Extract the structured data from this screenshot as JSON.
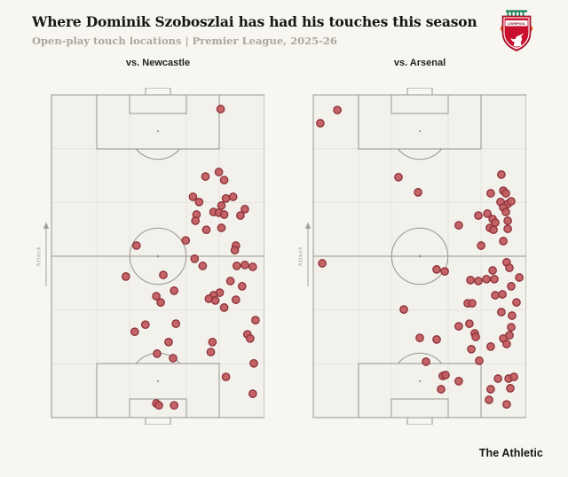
{
  "header": {
    "title": "Where Dominik Szoboszlai has had his touches this season",
    "subtitle": "Open-play touch locations | Premier League, 2025-26",
    "logo": "liverpool-crest"
  },
  "footer": {
    "brand": "The Athletic"
  },
  "colors": {
    "background": "#f8f6f1",
    "pitch_fill": "#f3f1ec",
    "pitch_line": "#96958f",
    "grid_line": "#e5e3dc",
    "spot": "#96958f",
    "touch_fill": "#c25c61",
    "touch_stroke": "#8c3137",
    "title": "#181716",
    "subtitle": "#aba79f",
    "attack_label": "#a3a29c",
    "crest_red": "#c8102e",
    "crest_green": "#0b7d52",
    "crest_flame": "#e8632c"
  },
  "chart_data": {
    "type": "scatter",
    "title": "Where Dominik Szoboszlai has had his touches this season",
    "subtitle": "Open-play touch locations | Premier League, 2025-26",
    "coords": "x: 0-100 left to right; y: 0 = attacking goal line, 100 = own goal line; vertical pitch, attack direction upward",
    "pitches": [
      {
        "label": "vs. Newcastle",
        "attack_label": "Attack",
        "touches": [
          [
            79.4,
            4.4
          ],
          [
            72.3,
            25.3
          ],
          [
            78.6,
            23.9
          ],
          [
            81.1,
            26.4
          ],
          [
            66.4,
            31.6
          ],
          [
            69.3,
            33.2
          ],
          [
            81.9,
            32.1
          ],
          [
            85.3,
            31.6
          ],
          [
            79.8,
            34.3
          ],
          [
            76.1,
            36.3
          ],
          [
            78.6,
            36.5
          ],
          [
            81.1,
            37.1
          ],
          [
            90.8,
            35.4
          ],
          [
            88.7,
            37.4
          ],
          [
            68.1,
            37.1
          ],
          [
            67.6,
            39.0
          ],
          [
            72.7,
            41.8
          ],
          [
            79.8,
            41.2
          ],
          [
            63.0,
            45.1
          ],
          [
            86.6,
            46.7
          ],
          [
            86.1,
            48.1
          ],
          [
            39.9,
            46.7
          ],
          [
            67.2,
            50.8
          ],
          [
            71.0,
            53.0
          ],
          [
            87.0,
            53.0
          ],
          [
            90.8,
            52.7
          ],
          [
            94.5,
            53.3
          ],
          [
            34.9,
            56.3
          ],
          [
            52.5,
            55.8
          ],
          [
            84.0,
            57.7
          ],
          [
            89.5,
            59.3
          ],
          [
            79.0,
            61.3
          ],
          [
            76.1,
            62.1
          ],
          [
            73.9,
            63.2
          ],
          [
            76.9,
            63.7
          ],
          [
            49.2,
            62.4
          ],
          [
            51.3,
            64.3
          ],
          [
            57.6,
            60.7
          ],
          [
            81.1,
            65.9
          ],
          [
            86.6,
            63.5
          ],
          [
            95.8,
            69.8
          ],
          [
            44.1,
            71.2
          ],
          [
            39.1,
            73.4
          ],
          [
            58.4,
            70.9
          ],
          [
            92.0,
            74.2
          ],
          [
            93.3,
            75.5
          ],
          [
            55.0,
            76.6
          ],
          [
            75.6,
            76.6
          ],
          [
            74.8,
            79.7
          ],
          [
            49.6,
            80.2
          ],
          [
            57.1,
            81.6
          ],
          [
            95.0,
            83.2
          ],
          [
            81.9,
            87.4
          ],
          [
            94.5,
            92.6
          ],
          [
            49.2,
            95.6
          ],
          [
            50.4,
            96.2
          ],
          [
            57.6,
            96.2
          ]
        ]
      },
      {
        "label": "vs. Arsenal",
        "attack_label": "Attack",
        "touches": [
          [
            11.3,
            4.7
          ],
          [
            3.3,
            8.8
          ],
          [
            40.0,
            25.5
          ],
          [
            49.2,
            30.2
          ],
          [
            68.3,
            40.4
          ],
          [
            88.3,
            24.7
          ],
          [
            83.3,
            30.5
          ],
          [
            89.2,
            29.7
          ],
          [
            90.4,
            30.5
          ],
          [
            87.9,
            33.2
          ],
          [
            91.3,
            33.8
          ],
          [
            92.9,
            33.0
          ],
          [
            89.2,
            34.9
          ],
          [
            81.7,
            36.8
          ],
          [
            77.5,
            37.4
          ],
          [
            90.4,
            36.3
          ],
          [
            84.2,
            38.5
          ],
          [
            85.4,
            39.6
          ],
          [
            91.3,
            39.0
          ],
          [
            82.9,
            41.2
          ],
          [
            84.6,
            41.8
          ],
          [
            91.3,
            41.5
          ],
          [
            89.2,
            45.3
          ],
          [
            78.8,
            46.7
          ],
          [
            4.2,
            52.2
          ],
          [
            90.8,
            51.9
          ],
          [
            92.1,
            53.6
          ],
          [
            57.9,
            54.1
          ],
          [
            61.7,
            54.7
          ],
          [
            84.2,
            54.4
          ],
          [
            73.8,
            57.4
          ],
          [
            77.5,
            57.7
          ],
          [
            81.3,
            57.1
          ],
          [
            85.0,
            57.1
          ],
          [
            96.7,
            56.6
          ],
          [
            92.9,
            59.3
          ],
          [
            85.4,
            62.1
          ],
          [
            88.8,
            61.8
          ],
          [
            72.5,
            64.6
          ],
          [
            74.6,
            64.6
          ],
          [
            95.4,
            64.3
          ],
          [
            42.5,
            66.5
          ],
          [
            88.3,
            67.3
          ],
          [
            93.3,
            68.4
          ],
          [
            68.3,
            71.7
          ],
          [
            73.3,
            70.9
          ],
          [
            92.9,
            72.0
          ],
          [
            75.8,
            73.9
          ],
          [
            76.3,
            75.0
          ],
          [
            89.2,
            75.5
          ],
          [
            92.1,
            74.5
          ],
          [
            50.0,
            75.3
          ],
          [
            57.9,
            75.8
          ],
          [
            83.3,
            78.0
          ],
          [
            90.8,
            77.2
          ],
          [
            74.2,
            78.8
          ],
          [
            77.9,
            82.4
          ],
          [
            52.9,
            82.7
          ],
          [
            60.8,
            87.1
          ],
          [
            62.1,
            86.8
          ],
          [
            68.3,
            88.7
          ],
          [
            86.7,
            87.9
          ],
          [
            91.7,
            87.9
          ],
          [
            94.2,
            87.4
          ],
          [
            60.0,
            91.2
          ],
          [
            83.3,
            91.2
          ],
          [
            92.5,
            90.9
          ],
          [
            82.5,
            94.5
          ],
          [
            90.8,
            95.9
          ]
        ]
      }
    ]
  }
}
